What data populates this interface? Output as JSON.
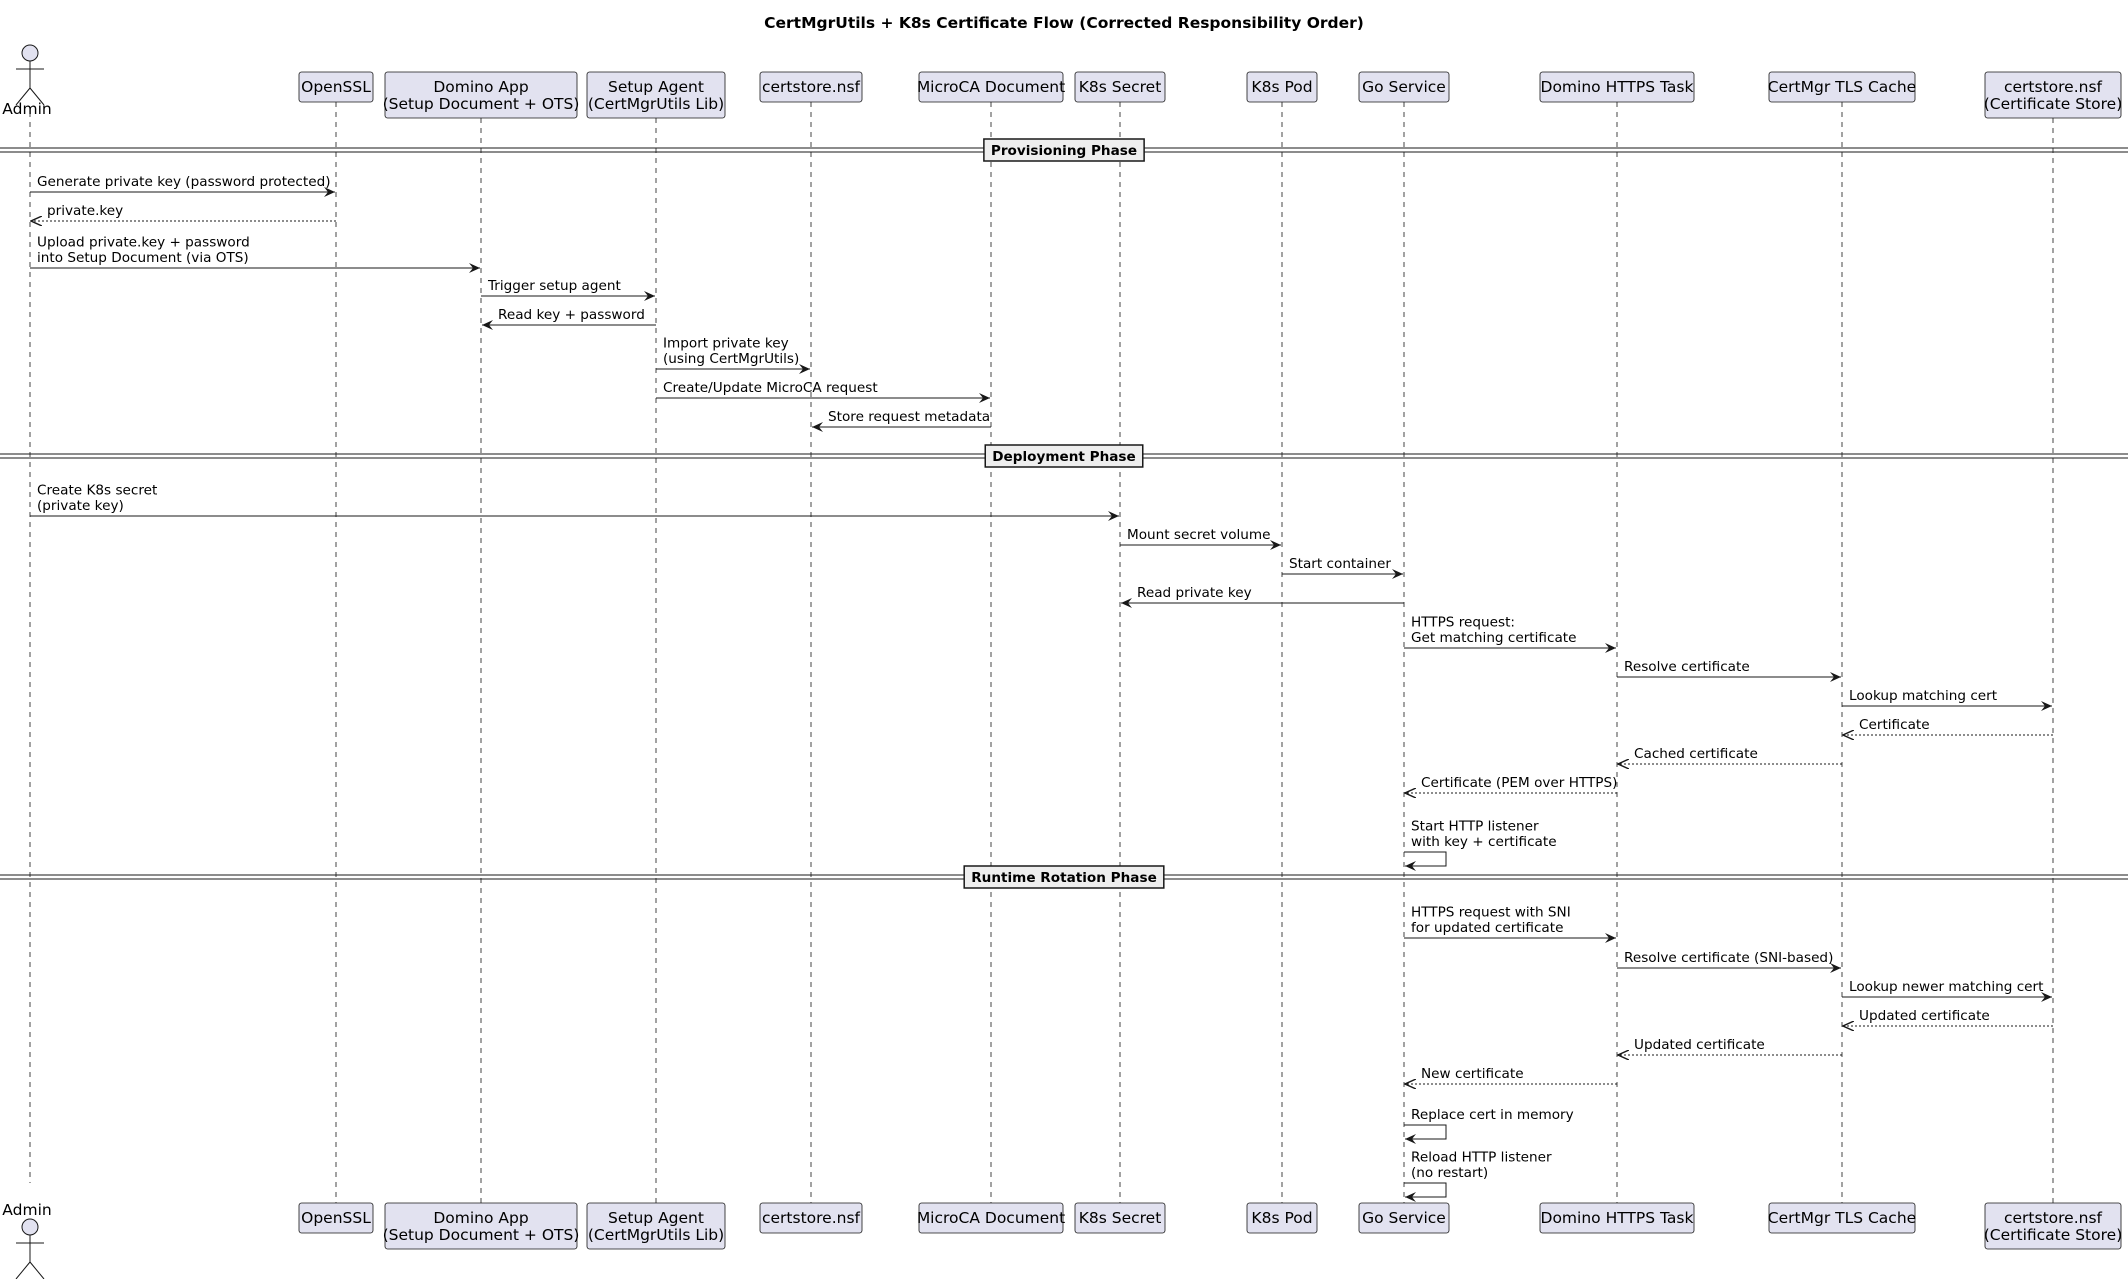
{
  "title": "CertMgrUtils + K8s Certificate Flow (Corrected Responsibility Order)",
  "colors": {
    "participant_fill": "#E2E2F0",
    "participant_border": "#181818",
    "lifeline": "#181818",
    "arrow": "#181818",
    "text": "#000000",
    "background": "#FFFFFF"
  },
  "participants": [
    {
      "id": "admin",
      "type": "actor",
      "lines": [
        "Admin"
      ]
    },
    {
      "id": "openssl",
      "type": "box",
      "lines": [
        "OpenSSL"
      ]
    },
    {
      "id": "domino_app",
      "type": "box",
      "lines": [
        "Domino App",
        "(Setup Document + OTS)"
      ]
    },
    {
      "id": "setup_agent",
      "type": "box",
      "lines": [
        "Setup Agent",
        "(CertMgrUtils Lib)"
      ]
    },
    {
      "id": "certstore",
      "type": "box",
      "lines": [
        "certstore.nsf"
      ]
    },
    {
      "id": "microca",
      "type": "box",
      "lines": [
        "MicroCA Document"
      ]
    },
    {
      "id": "k8s_secret",
      "type": "box",
      "lines": [
        "K8s Secret"
      ]
    },
    {
      "id": "k8s_pod",
      "type": "box",
      "lines": [
        "K8s Pod"
      ]
    },
    {
      "id": "go_service",
      "type": "box",
      "lines": [
        "Go Service"
      ]
    },
    {
      "id": "domino_https",
      "type": "box",
      "lines": [
        "Domino HTTPS Task"
      ]
    },
    {
      "id": "tls_cache",
      "type": "box",
      "lines": [
        "CertMgr TLS Cache"
      ]
    },
    {
      "id": "cert_store",
      "type": "box",
      "lines": [
        "certstore.nsf",
        "(Certificate Store)"
      ]
    }
  ],
  "sequence": [
    {
      "kind": "divider",
      "label": "Provisioning Phase"
    },
    {
      "kind": "msg",
      "from": "admin",
      "to": "openssl",
      "style": "solid",
      "lines": [
        "Generate private key (password protected)"
      ]
    },
    {
      "kind": "msg",
      "from": "openssl",
      "to": "admin",
      "style": "dashed",
      "lines": [
        "private.key"
      ]
    },
    {
      "kind": "msg",
      "from": "admin",
      "to": "domino_app",
      "style": "solid",
      "lines": [
        "Upload private.key + password",
        "into Setup Document (via OTS)"
      ]
    },
    {
      "kind": "msg",
      "from": "domino_app",
      "to": "setup_agent",
      "style": "solid",
      "lines": [
        "Trigger setup agent"
      ]
    },
    {
      "kind": "msg",
      "from": "setup_agent",
      "to": "domino_app",
      "style": "solid",
      "lines": [
        "Read key + password"
      ]
    },
    {
      "kind": "msg",
      "from": "setup_agent",
      "to": "certstore",
      "style": "solid",
      "lines": [
        "Import private key",
        "(using CertMgrUtils)"
      ]
    },
    {
      "kind": "msg",
      "from": "setup_agent",
      "to": "microca",
      "style": "solid",
      "lines": [
        "Create/Update MicroCA request"
      ]
    },
    {
      "kind": "msg",
      "from": "microca",
      "to": "certstore",
      "style": "solid",
      "lines": [
        "Store request metadata"
      ]
    },
    {
      "kind": "divider",
      "label": "Deployment Phase"
    },
    {
      "kind": "msg",
      "from": "admin",
      "to": "k8s_secret",
      "style": "solid",
      "lines": [
        "Create K8s secret",
        "(private key)"
      ]
    },
    {
      "kind": "msg",
      "from": "k8s_secret",
      "to": "k8s_pod",
      "style": "solid",
      "lines": [
        "Mount secret volume"
      ]
    },
    {
      "kind": "msg",
      "from": "k8s_pod",
      "to": "go_service",
      "style": "solid",
      "lines": [
        "Start container"
      ]
    },
    {
      "kind": "msg",
      "from": "go_service",
      "to": "k8s_secret",
      "style": "solid",
      "lines": [
        "Read private key"
      ]
    },
    {
      "kind": "msg",
      "from": "go_service",
      "to": "domino_https",
      "style": "solid",
      "lines": [
        "HTTPS request:",
        "Get matching certificate"
      ]
    },
    {
      "kind": "msg",
      "from": "domino_https",
      "to": "tls_cache",
      "style": "solid",
      "lines": [
        "Resolve certificate"
      ]
    },
    {
      "kind": "msg",
      "from": "tls_cache",
      "to": "cert_store",
      "style": "solid",
      "lines": [
        "Lookup matching cert"
      ]
    },
    {
      "kind": "msg",
      "from": "cert_store",
      "to": "tls_cache",
      "style": "dashed",
      "lines": [
        "Certificate"
      ]
    },
    {
      "kind": "msg",
      "from": "tls_cache",
      "to": "domino_https",
      "style": "dashed",
      "lines": [
        "Cached certificate"
      ]
    },
    {
      "kind": "msg",
      "from": "domino_https",
      "to": "go_service",
      "style": "dashed",
      "lines": [
        "Certificate (PEM over HTTPS)"
      ]
    },
    {
      "kind": "msg",
      "from": "go_service",
      "to": "go_service",
      "style": "solid",
      "lines": [
        "Start HTTP listener",
        "with key + certificate"
      ]
    },
    {
      "kind": "divider",
      "label": "Runtime Rotation Phase"
    },
    {
      "kind": "msg",
      "from": "go_service",
      "to": "domino_https",
      "style": "solid",
      "lines": [
        "HTTPS request with SNI",
        "for updated certificate"
      ]
    },
    {
      "kind": "msg",
      "from": "domino_https",
      "to": "tls_cache",
      "style": "solid",
      "lines": [
        "Resolve certificate (SNI-based)"
      ]
    },
    {
      "kind": "msg",
      "from": "tls_cache",
      "to": "cert_store",
      "style": "solid",
      "lines": [
        "Lookup newer matching cert"
      ]
    },
    {
      "kind": "msg",
      "from": "cert_store",
      "to": "tls_cache",
      "style": "dashed",
      "lines": [
        "Updated certificate"
      ]
    },
    {
      "kind": "msg",
      "from": "tls_cache",
      "to": "domino_https",
      "style": "dashed",
      "lines": [
        "Updated certificate"
      ]
    },
    {
      "kind": "msg",
      "from": "domino_https",
      "to": "go_service",
      "style": "dashed",
      "lines": [
        "New certificate"
      ]
    },
    {
      "kind": "msg",
      "from": "go_service",
      "to": "go_service",
      "style": "solid",
      "lines": [
        "Replace cert in memory"
      ]
    },
    {
      "kind": "msg",
      "from": "go_service",
      "to": "go_service",
      "style": "solid",
      "lines": [
        "Reload HTTP listener",
        "(no restart)"
      ]
    }
  ]
}
